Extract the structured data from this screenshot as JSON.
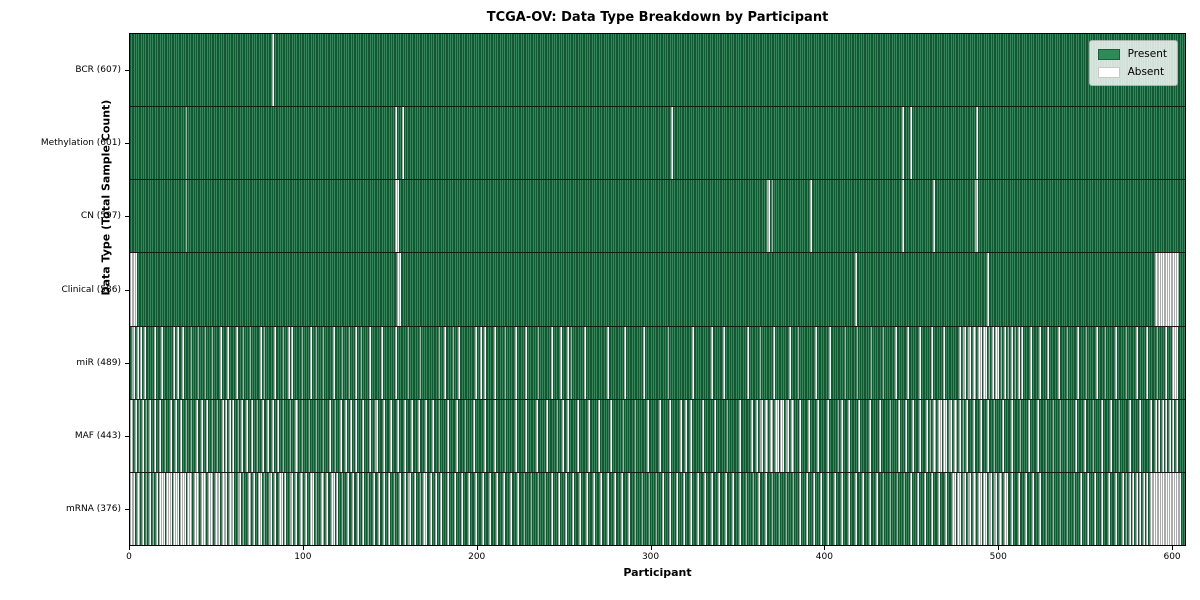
{
  "title": "TCGA-OV: Data Type Breakdown by Participant",
  "axes": {
    "x_label": "Participant",
    "y_label": "Data Type (Total Sample Count)",
    "x_ticks": [
      0,
      100,
      200,
      300,
      400,
      500,
      600
    ],
    "x_max": 608
  },
  "legend": {
    "present_label": "Present",
    "absent_label": "Absent",
    "position": "upper right"
  },
  "colors": {
    "present": "#2e8b57",
    "present_edge": "#14492c",
    "absent": "#fcfcfc",
    "absent_edge": "#ababab",
    "row_divider": "#181818",
    "legend_bg": "rgba(252,253,252,0.82)"
  },
  "chart_data": {
    "type": "heatmap",
    "title": "TCGA-OV: Data Type Breakdown by Participant",
    "xlabel": "Participant",
    "ylabel": "Data Type (Total Sample Count)",
    "x_range": [
      0,
      608
    ],
    "n_participants": 608,
    "grid": false,
    "legend_entries": [
      "Present",
      "Absent"
    ],
    "legend_position": "upper right",
    "rows": [
      {
        "label": "BCR (607)",
        "data_type": "BCR",
        "present_count": 607,
        "absent_count": 1,
        "absent_indices": [
          82
        ]
      },
      {
        "label": "Methylation (601)",
        "data_type": "Methylation",
        "present_count": 601,
        "absent_count": 7,
        "absent_indices": [
          32,
          153,
          157,
          312,
          445,
          450,
          488
        ]
      },
      {
        "label": "CN (597)",
        "data_type": "CN",
        "present_count": 597,
        "absent_count": 11,
        "absent_indices": [
          32,
          153,
          154,
          367,
          368,
          370,
          392,
          445,
          463,
          487,
          488
        ]
      },
      {
        "label": "Clinical (586)",
        "data_type": "Clinical",
        "present_count": 586,
        "absent_count": 22,
        "absent_indices": [
          0,
          1,
          2,
          3,
          154,
          155,
          418,
          494,
          591,
          592,
          593,
          594,
          595,
          596,
          597,
          598,
          599,
          600,
          601,
          602,
          603,
          604
        ]
      },
      {
        "label": "miR (489)",
        "data_type": "miR",
        "present_count": 489,
        "absent_count": 119,
        "absent_indices": [
          1,
          2,
          4,
          6,
          8,
          14,
          18,
          25,
          27,
          30,
          35,
          39,
          43,
          47,
          52,
          56,
          61,
          65,
          69,
          75,
          77,
          83,
          88,
          91,
          93,
          99,
          104,
          107,
          111,
          117,
          122,
          126,
          130,
          133,
          138,
          145,
          153,
          160,
          167,
          178,
          181,
          186,
          189,
          199,
          202,
          204,
          210,
          216,
          222,
          228,
          235,
          243,
          248,
          252,
          254,
          262,
          275,
          285,
          296,
          310,
          324,
          335,
          342,
          356,
          363,
          371,
          380,
          385,
          395,
          403,
          412,
          419,
          427,
          434,
          441,
          448,
          455,
          462,
          469,
          478,
          480,
          481,
          483,
          484,
          486,
          487,
          489,
          490,
          492,
          493,
          495,
          497,
          499,
          500,
          502,
          504,
          506,
          508,
          510,
          512,
          514,
          519,
          524,
          529,
          535,
          540,
          546,
          551,
          557,
          562,
          568,
          574,
          580,
          586,
          592,
          597,
          601,
          602,
          603
        ]
      },
      {
        "label": "MAF (443)",
        "data_type": "MAF",
        "present_count": 443,
        "absent_count": 165,
        "absent_indices": [
          0,
          1,
          3,
          5,
          7,
          9,
          11,
          14,
          17,
          20,
          23,
          26,
          29,
          32,
          35,
          38,
          41,
          44,
          47,
          50,
          53,
          55,
          57,
          59,
          62,
          64,
          67,
          70,
          73,
          76,
          79,
          82,
          85,
          88,
          92,
          95,
          96,
          99,
          103,
          107,
          111,
          115,
          118,
          121,
          124,
          127,
          130,
          134,
          138,
          141,
          142,
          146,
          150,
          154,
          158,
          162,
          166,
          170,
          174,
          178,
          183,
          188,
          193,
          198,
          204,
          210,
          216,
          222,
          228,
          234,
          240,
          246,
          249,
          252,
          258,
          264,
          270,
          277,
          284,
          291,
          298,
          305,
          311,
          317,
          320,
          323,
          330,
          337,
          344,
          351,
          358,
          361,
          363,
          364,
          366,
          367,
          369,
          370,
          372,
          373,
          375,
          376,
          378,
          379,
          381,
          382,
          386,
          391,
          396,
          402,
          408,
          410,
          414,
          420,
          426,
          432,
          438,
          443,
          447,
          451,
          455,
          459,
          461,
          463,
          464,
          466,
          467,
          469,
          470,
          472,
          473,
          475,
          476,
          478,
          480,
          482,
          486,
          490,
          494,
          498,
          503,
          508,
          513,
          518,
          523,
          528,
          532,
          536,
          540,
          545,
          550,
          555,
          560,
          565,
          570,
          576,
          582,
          588,
          591,
          593,
          595,
          597,
          599,
          601,
          603
        ]
      },
      {
        "label": "mRNA (376)",
        "data_type": "mRNA",
        "present_count": 376,
        "absent_count": 232,
        "absent_indices": [
          0,
          1,
          2,
          4,
          5,
          7,
          9,
          11,
          13,
          15,
          17,
          18,
          19,
          21,
          22,
          23,
          25,
          26,
          27,
          29,
          30,
          31,
          33,
          34,
          35,
          37,
          38,
          39,
          41,
          42,
          43,
          45,
          46,
          47,
          49,
          50,
          51,
          53,
          54,
          55,
          57,
          58,
          59,
          62,
          63,
          65,
          68,
          69,
          71,
          74,
          75,
          77,
          80,
          81,
          83,
          86,
          87,
          89,
          92,
          93,
          95,
          98,
          99,
          101,
          104,
          105,
          107,
          110,
          111,
          113,
          116,
          117,
          119,
          122,
          125,
          128,
          131,
          134,
          137,
          140,
          143,
          146,
          149,
          152,
          155,
          158,
          160,
          161,
          164,
          167,
          169,
          170,
          173,
          176,
          179,
          183,
          187,
          191,
          195,
          199,
          203,
          207,
          211,
          215,
          219,
          223,
          227,
          231,
          235,
          239,
          243,
          247,
          251,
          255,
          259,
          263,
          267,
          271,
          275,
          279,
          283,
          287,
          291,
          295,
          299,
          303,
          307,
          311,
          315,
          319,
          323,
          327,
          331,
          335,
          339,
          343,
          347,
          351,
          355,
          359,
          362,
          366,
          370,
          374,
          378,
          382,
          386,
          390,
          394,
          398,
          402,
          406,
          410,
          414,
          418,
          422,
          426,
          430,
          434,
          438,
          442,
          446,
          450,
          454,
          458,
          462,
          466,
          470,
          474,
          475,
          477,
          478,
          480,
          481,
          483,
          484,
          486,
          487,
          489,
          490,
          492,
          493,
          495,
          496,
          498,
          499,
          501,
          502,
          504,
          505,
          508,
          512,
          516,
          520,
          524,
          528,
          532,
          536,
          540,
          544,
          548,
          552,
          556,
          560,
          564,
          568,
          572,
          574,
          576,
          578,
          580,
          582,
          584,
          586,
          588,
          589,
          590,
          591,
          592,
          593,
          594,
          595,
          596,
          597,
          598,
          599,
          600,
          601,
          602,
          603,
          604,
          605
        ]
      }
    ]
  }
}
